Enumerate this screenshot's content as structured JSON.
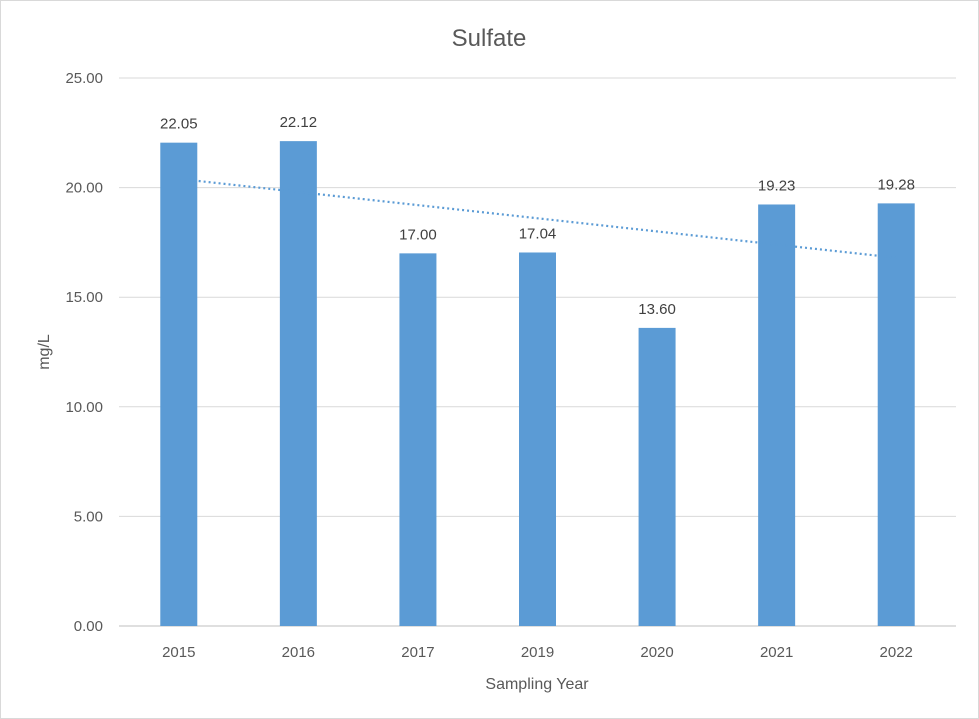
{
  "chart_data": {
    "type": "bar",
    "title": "Sulfate",
    "xlabel": "Sampling Year",
    "ylabel": "mg/L",
    "categories": [
      "2015",
      "2016",
      "2017",
      "2019",
      "2020",
      "2021",
      "2022"
    ],
    "values": [
      22.05,
      22.12,
      17.0,
      17.04,
      13.6,
      19.23,
      19.28
    ],
    "data_labels": [
      "22.05",
      "22.12",
      "17.00",
      "17.04",
      "13.60",
      "19.23",
      "19.28"
    ],
    "ylim": [
      0,
      25
    ],
    "yticks": [
      0,
      5,
      10,
      15,
      20,
      25
    ],
    "ytick_labels": [
      "0.00",
      "5.00",
      "10.00",
      "15.00",
      "20.00",
      "25.00"
    ],
    "grid": true,
    "legend": "none",
    "bar_color": "#5b9bd5",
    "trendline": {
      "type": "linear",
      "style": "dotted",
      "color": "#5b9bd5",
      "start_value": 20.4,
      "end_value": 16.8
    }
  }
}
